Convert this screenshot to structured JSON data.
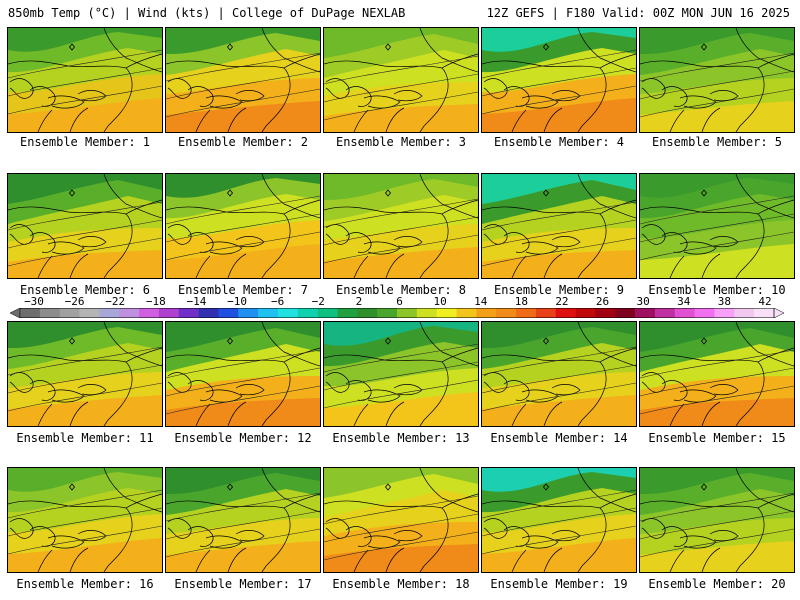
{
  "header": {
    "left": "850mb Temp (°C) | Wind (kts) | College of DuPage NEXLAB",
    "right": "12Z GEFS | F180 Valid: 00Z MON JUN 16 2025"
  },
  "members": [
    {
      "label": "Ensemble Member: 1",
      "fill": [
        "#f3b01a",
        "#e6c51a",
        "#b6d221",
        "#6fba28",
        "#3a9b2c"
      ]
    },
    {
      "label": "Ensemble Member: 2",
      "fill": [
        "#f08a18",
        "#f3b01a",
        "#e6d21c",
        "#8cc52a",
        "#3a9b2c"
      ]
    },
    {
      "label": "Ensemble Member: 3",
      "fill": [
        "#f3b01a",
        "#e6d21c",
        "#cde022",
        "#9fcb26",
        "#6fba28"
      ]
    },
    {
      "label": "Ensemble Member: 4",
      "fill": [
        "#f08a18",
        "#f3b01a",
        "#cde022",
        "#3a9b2c",
        "#1ccf9a"
      ]
    },
    {
      "label": "Ensemble Member: 5",
      "fill": [
        "#e6d21c",
        "#b6d221",
        "#8cc52a",
        "#5aaf2a",
        "#3a9b2c"
      ]
    },
    {
      "label": "Ensemble Member: 6",
      "fill": [
        "#f3b01a",
        "#e6d21c",
        "#b6d221",
        "#5aaf2a",
        "#2f8f2c"
      ]
    },
    {
      "label": "Ensemble Member: 7",
      "fill": [
        "#f3b01a",
        "#f3c51a",
        "#cde022",
        "#8cc52a",
        "#2f8f2c"
      ]
    },
    {
      "label": "Ensemble Member: 8",
      "fill": [
        "#f3b01a",
        "#e6d21c",
        "#cde022",
        "#9fcb26",
        "#6fba28"
      ]
    },
    {
      "label": "Ensemble Member: 9",
      "fill": [
        "#f3b01a",
        "#e6d21c",
        "#b6d221",
        "#3a9b2c",
        "#1ccf9a"
      ]
    },
    {
      "label": "Ensemble Member: 10",
      "fill": [
        "#cde022",
        "#8cc52a",
        "#6fba28",
        "#4aa52c",
        "#3a9b2c"
      ]
    },
    {
      "label": "Ensemble Member: 11",
      "fill": [
        "#f3b01a",
        "#e6d21c",
        "#b6d221",
        "#6fba28",
        "#2f8f2c"
      ]
    },
    {
      "label": "Ensemble Member: 12",
      "fill": [
        "#f08a18",
        "#f3b01a",
        "#cde022",
        "#5aaf2a",
        "#2f8f2c"
      ]
    },
    {
      "label": "Ensemble Member: 13",
      "fill": [
        "#f3c51a",
        "#cde022",
        "#8cc52a",
        "#3a9b2c",
        "#16b480"
      ]
    },
    {
      "label": "Ensemble Member: 14",
      "fill": [
        "#f3b01a",
        "#e6d21c",
        "#b6d221",
        "#4aa52c",
        "#2f8f2c"
      ]
    },
    {
      "label": "Ensemble Member: 15",
      "fill": [
        "#f08a18",
        "#f3b01a",
        "#cde022",
        "#4aa52c",
        "#2f8f2c"
      ]
    },
    {
      "label": "Ensemble Member: 16",
      "fill": [
        "#f3b01a",
        "#e6d21c",
        "#b6d221",
        "#8cc52a",
        "#5aaf2a"
      ]
    },
    {
      "label": "Ensemble Member: 17",
      "fill": [
        "#f3b01a",
        "#e6d21c",
        "#b6d221",
        "#4aa52c",
        "#2f8f2c"
      ]
    },
    {
      "label": "Ensemble Member: 18",
      "fill": [
        "#f08a18",
        "#f3b01a",
        "#e6d21c",
        "#cde022",
        "#8cc52a"
      ]
    },
    {
      "label": "Ensemble Member: 19",
      "fill": [
        "#f3b01a",
        "#e6d21c",
        "#b6d221",
        "#3a9b2c",
        "#1ccfb0"
      ]
    },
    {
      "label": "Ensemble Member: 20",
      "fill": [
        "#e6d21c",
        "#b6d221",
        "#8cc52a",
        "#5aaf2a",
        "#3a9b2c"
      ]
    }
  ],
  "colorbar": {
    "ticks": [
      "-30",
      "-26",
      "-22",
      "-18",
      "-14",
      "-10",
      "-6",
      "-2",
      "2",
      "6",
      "10",
      "14",
      "18",
      "22",
      "26",
      "30",
      "34",
      "38",
      "42"
    ],
    "colors": [
      "#6e6e6e",
      "#8c8c8c",
      "#a0a0a0",
      "#b4b4b4",
      "#a8a8d8",
      "#c090e0",
      "#d060e0",
      "#b040d0",
      "#7030c8",
      "#3030b0",
      "#2050e0",
      "#2090f0",
      "#20c0f0",
      "#20e0e0",
      "#10d0b0",
      "#10c080",
      "#20a040",
      "#2f8f2c",
      "#4aa52c",
      "#8cc52a",
      "#cde022",
      "#f0f020",
      "#f3c51a",
      "#f3a018",
      "#f08a18",
      "#f06a18",
      "#e84018",
      "#e01010",
      "#c00808",
      "#a00010",
      "#800020",
      "#a01060",
      "#c030a0",
      "#e050d0",
      "#f070f0",
      "#f8a0f8",
      "#f0c8f0",
      "#f8e0f8"
    ]
  }
}
